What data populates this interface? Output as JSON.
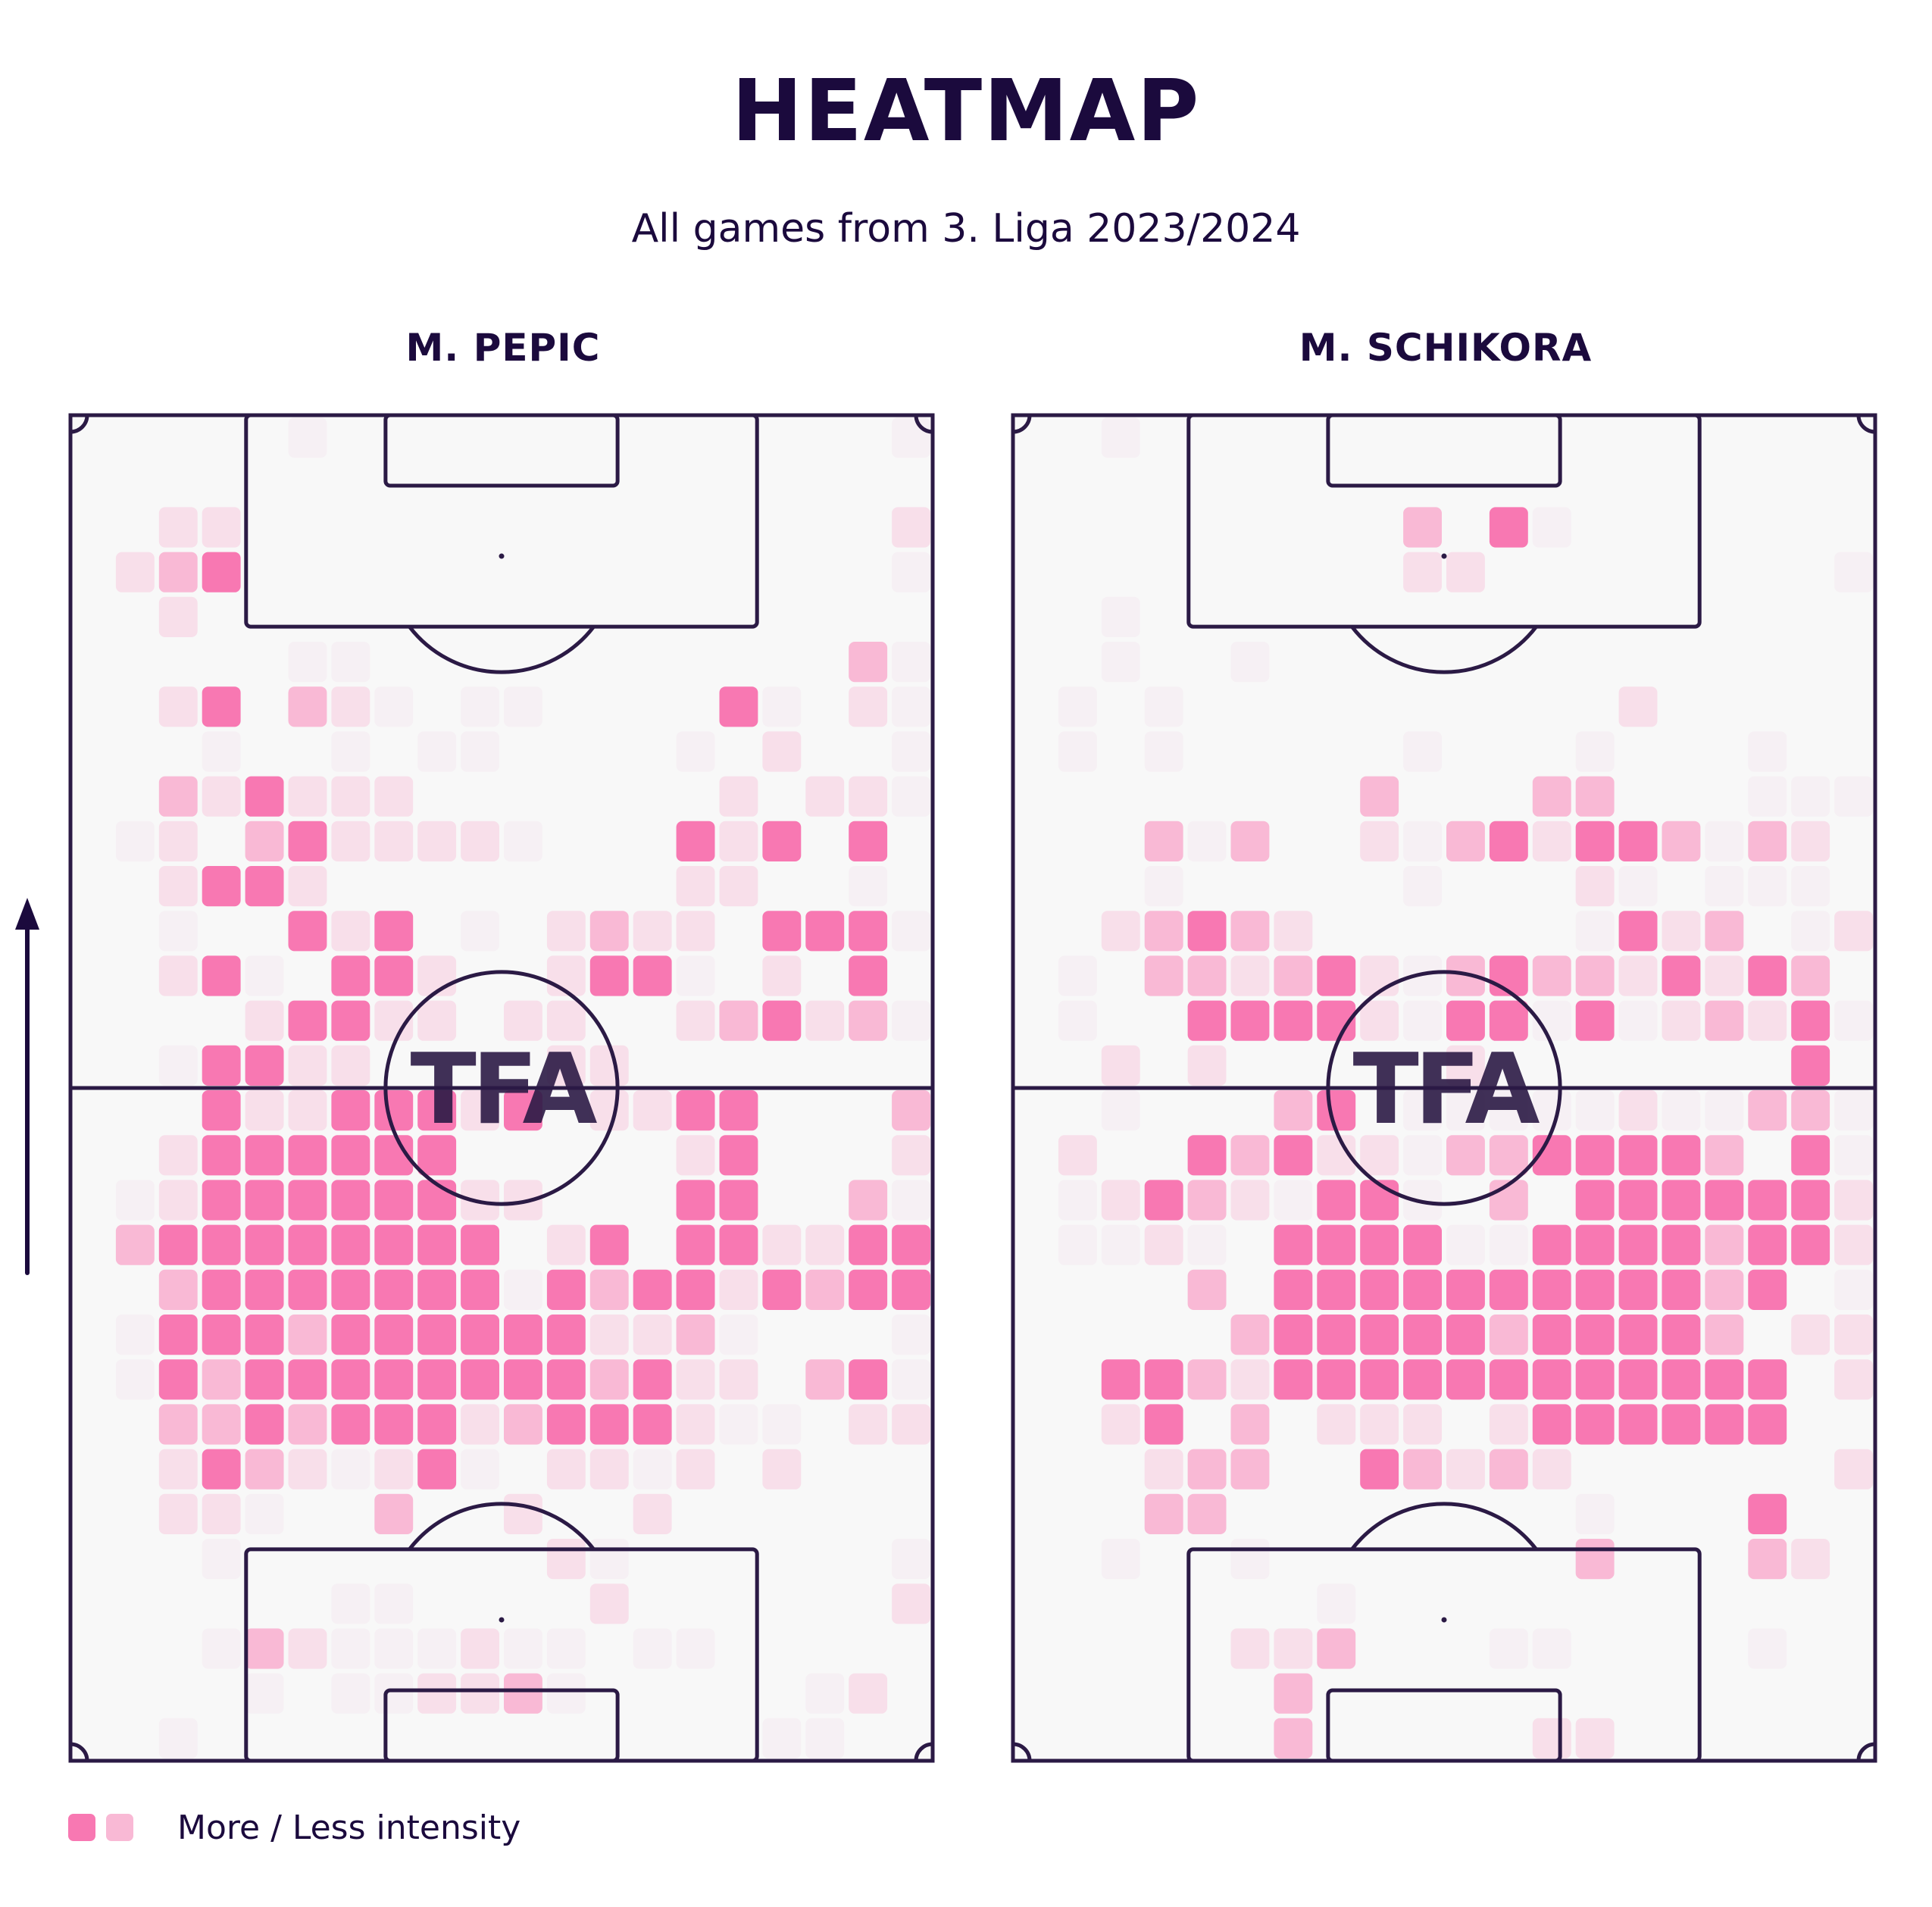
{
  "title": "HEATMAP",
  "subtitle": "All games from 3. Liga 2023/2024",
  "legend": {
    "label": "More / Less intensity",
    "more_color": "#f878b2",
    "less_color": "#f9b9d5"
  },
  "watermark": "TFA",
  "direction_icon": "up-arrow-icon",
  "colors": {
    "text": "#1b0a3d",
    "pitch_fill": "#f8f8f8",
    "pitch_lines": "#2b1a45",
    "levels": [
      "#f8f8f8",
      "#f6f0f4",
      "#f8dfea",
      "#f9b9d5",
      "#f878b2"
    ]
  },
  "chart_data": [
    {
      "type": "heatmap",
      "title": "M. PEPIC",
      "grid": {
        "cols": 20,
        "rows": 30
      },
      "intensity_scale": "0 = none, 4 = most intense",
      "rows": [
        "00000100000000000001",
        "00000000000000000000",
        "00220000000000000002",
        "02340000000000000001",
        "00200000000000000000",
        "00000110000000000031",
        "00240321011000041021",
        "00010010110000102001",
        "00324222000000020221",
        "01203422221000424040",
        "00244200000000220010",
        "00100424010232204441",
        "00241044200244102040",
        "00002442202200234231",
        "00144220000220000000",
        "00042244424022440003",
        "00244444400000240002",
        "01244444422000440031",
        "03444444440240442244",
        "00344444441434424344",
        "01444344444422310001",
        "01434444444434220341",
        "00334344423444211022",
        "00243212410221202000",
        "00221003002002000000",
        "00010000000210000001",
        "00000011000020000002",
        "00013211121101100000",
        "00001011223100000120",
        "00100000000000001100"
      ]
    },
    {
      "type": "heatmap",
      "title": "M. SCHIKORA",
      "grid": {
        "cols": 20,
        "rows": 30
      },
      "intensity_scale": "0 = none, 4 = most intense",
      "rows": [
        "00100000000000000000",
        "00000000000000000000",
        "00000000030410000000",
        "00000000022000000001",
        "00100000000000000000",
        "00100100000000000000",
        "01010000000000200000",
        "01010000010001000100",
        "00000000300033000111",
        "00031300213424431320",
        "00010000010002101110",
        "00234320000001423012",
        "01033234213433242430",
        "01004444214414123241",
        "00202000002000000040",
        "00100034011111211331",
        "02004342213344443041",
        "01243214410304444442",
        "01121044441144443442",
        "00003044444444443401",
        "00000344444344443022",
        "00443244444444444402",
        "00240302220244444400",
        "00023300432320000002",
        "00033000000001000400",
        "00100100000003000320",
        "00000001000000000000",
        "00000223000110000100",
        "00000030000000000000",
        "00000030000022000000"
      ]
    }
  ]
}
